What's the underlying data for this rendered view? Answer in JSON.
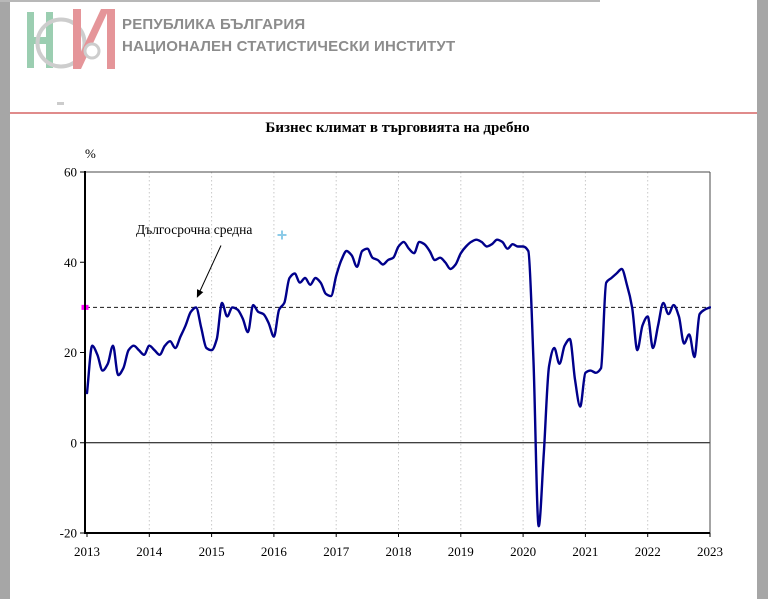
{
  "header": {
    "logo_letters": "НСИ",
    "logo_colors": {
      "green": "#9BCEB1",
      "gray_ring": "#CDCDCD",
      "red": "#E59599"
    },
    "line1": "РЕПУБЛИКА БЪЛГАРИЯ",
    "line2": "НАЦИОНАЛЕН СТАТИСТИЧЕСКИ ИНСТИТУТ",
    "text_color": "#8C8C8C",
    "divider_color": "#E08B8B"
  },
  "chart_data": {
    "type": "line",
    "title": "Бизнес климат в търговията на дребно",
    "ylabel": "%",
    "xlabel": "",
    "ylim": [
      -20,
      60
    ],
    "yticks": [
      60,
      40,
      20,
      0,
      -20
    ],
    "xticks": [
      2013,
      2014,
      2015,
      2016,
      2017,
      2018,
      2019,
      2020,
      2021,
      2022,
      2023
    ],
    "grid": "vertical-dotted",
    "legend_position": "none",
    "line_color": "#00008B",
    "grid_color": "#C9C9C9",
    "zero_line": 0,
    "long_term_average": {
      "label": "Дългосрочна средна",
      "value": 30,
      "line_style": "dashed",
      "marker_color": "#FF00FF"
    },
    "series": [
      {
        "name": "Бизнес климат",
        "frequency": "monthly",
        "start": "2013-01",
        "end": "2023-01",
        "values": [
          11,
          21.5,
          19.5,
          16,
          17.5,
          21.5,
          15,
          16.5,
          20.5,
          21.5,
          20.5,
          19.5,
          21.5,
          20.5,
          19.5,
          21.5,
          22.5,
          21,
          23.5,
          26,
          29,
          30,
          25.5,
          21,
          20.5,
          23,
          31,
          28,
          30,
          29.5,
          27.5,
          24.5,
          30.5,
          29,
          28.5,
          26.5,
          23.5,
          29.5,
          31,
          36.5,
          37.5,
          35.5,
          36.5,
          35,
          36.5,
          35.5,
          33,
          32.5,
          37,
          40.5,
          42.5,
          41.5,
          39,
          42.5,
          43,
          41,
          40.5,
          39.5,
          40.5,
          41,
          43.5,
          44.5,
          43,
          42,
          44.5,
          44,
          42.5,
          40.5,
          41,
          40,
          38.5,
          39.5,
          42,
          43.5,
          44.5,
          45,
          44.5,
          43.5,
          44,
          45,
          44.5,
          43,
          44,
          43.5,
          43.5,
          42.5,
          18,
          -18.5,
          -2,
          17,
          21,
          17.5,
          21.5,
          23,
          14,
          8,
          15.5,
          16,
          15.5,
          16.5,
          35.5,
          36.5,
          37.5,
          38.5,
          35,
          30,
          20.5,
          26,
          28,
          21,
          26,
          31,
          28.5,
          30.5,
          28,
          22,
          24,
          19,
          28.5,
          29.5,
          30
        ]
      }
    ]
  }
}
